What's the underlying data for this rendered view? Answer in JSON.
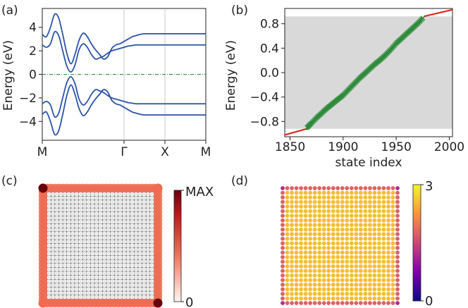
{
  "chart_data": [
    {
      "panel_label": "(a)",
      "type": "line",
      "ylabel": "Energy (eV)",
      "ylim": [
        -5.6,
        5.6
      ],
      "yticks": [
        "4",
        "2",
        "0",
        "−2",
        "−4"
      ],
      "xticks": [
        "M",
        "Γ",
        "X",
        "M"
      ],
      "x": [
        0,
        0.2,
        0.4,
        0.6,
        0.8,
        1.0,
        1.2,
        1.4,
        1.6,
        1.8,
        2.0,
        2.2,
        2.4,
        2.6,
        2.8,
        3.0,
        3.2,
        3.4,
        3.6,
        3.8,
        4.0,
        4.2,
        4.4,
        4.6,
        4.8,
        5.0,
        5.2,
        5.4,
        5.6,
        5.8,
        6.0,
        6.2,
        6.4,
        6.6,
        6.8,
        7.0,
        7.2,
        7.4,
        7.6,
        7.8,
        8.0
      ],
      "series": [
        {
          "values": [
            3.4,
            3.2,
            4.0,
            5.1,
            4.8,
            3.4,
            1.8,
            0.9,
            1.7,
            2.9,
            3.5,
            3.2,
            2.6,
            2.1,
            1.7,
            1.3,
            1.5,
            2.2,
            2.5,
            2.6,
            2.8,
            3.0,
            3.2,
            3.3,
            3.4,
            3.45,
            3.45,
            3.45,
            3.45,
            3.45,
            3.45,
            3.45,
            3.45,
            3.45,
            3.45,
            3.45,
            3.45,
            3.45,
            3.45,
            3.45,
            3.45
          ]
        },
        {
          "values": [
            2.5,
            2.3,
            2.6,
            3.6,
            3.3,
            2.0,
            0.7,
            0.2,
            0.8,
            2.1,
            2.6,
            2.3,
            1.7,
            1.3,
            1.4,
            1.55,
            1.8,
            2.0,
            2.1,
            2.2,
            2.3,
            2.4,
            2.45,
            2.5,
            2.5,
            2.5,
            2.5,
            2.5,
            2.5,
            2.5,
            2.5,
            2.5,
            2.5,
            2.5,
            2.5,
            2.5,
            2.5,
            2.5,
            2.5,
            2.5,
            2.5
          ]
        },
        {
          "values": [
            -2.5,
            -2.3,
            -2.6,
            -3.6,
            -3.3,
            -2.0,
            -0.7,
            -0.2,
            -0.8,
            -2.1,
            -2.6,
            -2.3,
            -1.7,
            -1.3,
            -1.4,
            -1.55,
            -1.8,
            -2.0,
            -2.1,
            -2.2,
            -2.3,
            -2.4,
            -2.45,
            -2.5,
            -2.5,
            -2.5,
            -2.5,
            -2.5,
            -2.5,
            -2.5,
            -2.5,
            -2.5,
            -2.5,
            -2.5,
            -2.5,
            -2.5,
            -2.5,
            -2.5,
            -2.5,
            -2.5,
            -2.5
          ]
        },
        {
          "values": [
            -3.4,
            -3.2,
            -4.0,
            -5.1,
            -4.8,
            -3.4,
            -1.8,
            -0.9,
            -1.7,
            -2.9,
            -3.5,
            -3.2,
            -2.6,
            -2.1,
            -1.7,
            -1.3,
            -1.5,
            -2.2,
            -2.5,
            -2.6,
            -2.8,
            -3.0,
            -3.2,
            -3.3,
            -3.4,
            -3.45,
            -3.45,
            -3.45,
            -3.45,
            -3.45,
            -3.45,
            -3.45,
            -3.45,
            -3.45,
            -3.45,
            -3.45,
            -3.45,
            -3.45,
            -3.45,
            -3.45,
            -3.45
          ]
        }
      ],
      "fermi_level": 0,
      "colors": {
        "bands": "#2a52a8",
        "fermi": "#2e8b3a"
      }
    },
    {
      "panel_label": "(b)",
      "type": "scatter",
      "xlabel": "state index",
      "ylabel": "Energy (eV)",
      "xlim": [
        1845,
        2003
      ],
      "ylim": [
        -1.05,
        1.05
      ],
      "xticks": [
        "1850",
        "1900",
        "1950",
        "2000"
      ],
      "yticks": [
        "0.8",
        "0.4",
        "0.0",
        "−0.4",
        "−0.8"
      ],
      "shaded_band": [
        -0.92,
        0.92
      ],
      "bulk_states": {
        "x": [
          1845,
          1866,
          1976,
          2003
        ],
        "y": [
          -1.02,
          -0.92,
          0.92,
          1.03
        ]
      },
      "edge_states": {
        "x": [
          1866,
          1870,
          1875,
          1880,
          1885,
          1890,
          1895,
          1900,
          1905,
          1910,
          1915,
          1920,
          1925,
          1930,
          1935,
          1940,
          1945,
          1950,
          1955,
          1960,
          1965,
          1970,
          1975
        ],
        "y": [
          -0.9,
          -0.83,
          -0.74,
          -0.66,
          -0.58,
          -0.51,
          -0.44,
          -0.37,
          -0.28,
          -0.19,
          -0.1,
          -0.02,
          0.06,
          0.14,
          0.21,
          0.29,
          0.38,
          0.48,
          0.56,
          0.64,
          0.72,
          0.8,
          0.89
        ]
      },
      "colors": {
        "bulk": "#dd2b1f",
        "edge": "#2e8b3a",
        "shade": "#d9d9da"
      }
    },
    {
      "panel_label": "(c)",
      "type": "heatmap",
      "lattice_size": 30,
      "colorbar_ticks": [
        "MAX",
        "0"
      ],
      "corner_weights": {
        "top-left": 1.0,
        "bottom-right": 1.0,
        "top-right": 0.45,
        "bottom-left": 0.45
      },
      "edge_weight": 0.45,
      "bulk_weight": 0.05,
      "colors": {
        "low": "#fff5f0",
        "mid": "#ef6a50",
        "high": "#67000d",
        "bonds": "#222222"
      }
    },
    {
      "panel_label": "(d)",
      "type": "heatmap",
      "lattice_size": 26,
      "colorbar_ticks": [
        "3",
        "0"
      ],
      "corner_value": 1.2,
      "edge_value": 1.75,
      "bulk_value": 2.55,
      "colors": {
        "colormap": "plasma"
      }
    }
  ]
}
